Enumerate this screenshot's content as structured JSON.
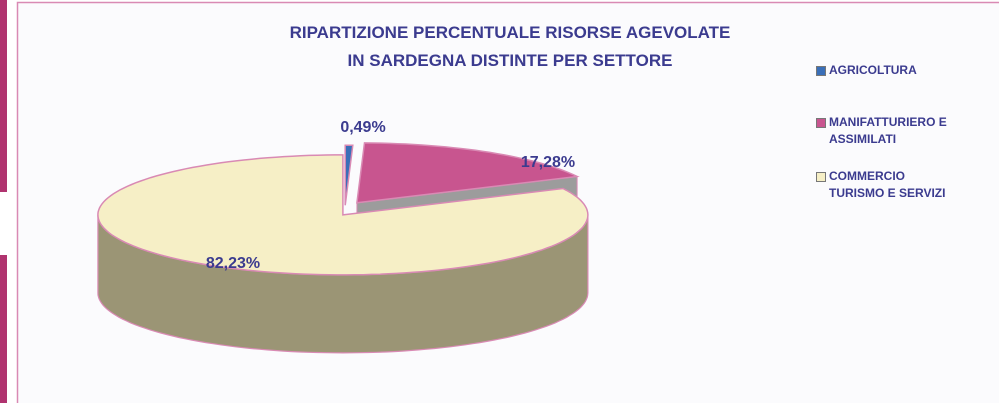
{
  "chart_data": {
    "type": "pie",
    "title": [
      "RIPARTIZIONE PERCENTUALE RISORSE AGEVOLATE",
      "IN SARDEGNA DISTINTE PER SETTORE"
    ],
    "categories": [
      "AGRICOLTURA",
      "MANIFATTURIERO E ASSIMILATI",
      "COMMERCIO TURISMO E SERVIZI"
    ],
    "values": [
      0.49,
      17.28,
      82.23
    ],
    "value_labels": [
      "0,49%",
      "17,28%",
      "82,23%"
    ],
    "colors": [
      "#3a6fb8",
      "#c8558f",
      "#f6efc6"
    ],
    "legend": "right"
  }
}
